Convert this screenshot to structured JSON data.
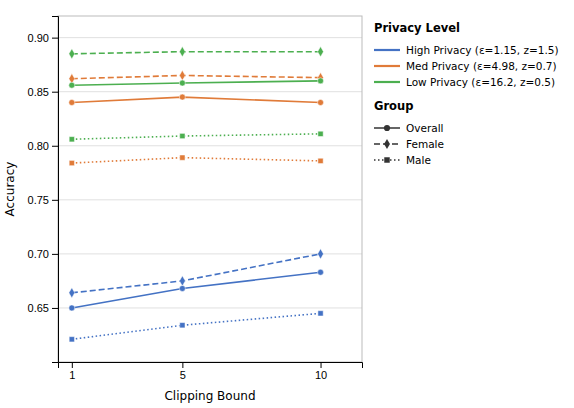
{
  "chart_data": {
    "type": "line",
    "x_label": "Clipping Bound",
    "y_label": "Accuracy",
    "x": [
      1,
      5,
      10
    ],
    "xlim": [
      0.5,
      11.5
    ],
    "xticks": [
      1,
      5,
      10
    ],
    "ylim": [
      0.6,
      0.92
    ],
    "yticks": [
      0.65,
      {
        "value": 0.7,
        "label": "0.70"
      },
      0.75,
      {
        "value": 0.8,
        "label": "0.80"
      },
      0.85,
      {
        "value": 0.9,
        "label": "0.90"
      }
    ],
    "grid": true,
    "legend": "right",
    "series": [
      {
        "color": "#4472C4",
        "line_style": "solid",
        "marker": "circle",
        "values": [
          0.65,
          0.668,
          0.683
        ]
      },
      {
        "color": "#4472C4",
        "line_style": "dashed",
        "marker": "diamond",
        "values": [
          0.664,
          0.675,
          0.7
        ]
      },
      {
        "color": "#4472C4",
        "line_style": "dotted",
        "marker": "square",
        "values": [
          0.621,
          0.634,
          0.645
        ]
      },
      {
        "color": "#E07B39",
        "line_style": "solid",
        "marker": "circle",
        "values": [
          0.84,
          0.845,
          0.84
        ]
      },
      {
        "color": "#E07B39",
        "line_style": "dashed",
        "marker": "diamond",
        "values": [
          0.862,
          0.865,
          0.863
        ]
      },
      {
        "color": "#E07B39",
        "line_style": "dotted",
        "marker": "square",
        "values": [
          0.784,
          0.789,
          0.786
        ]
      },
      {
        "color": "#4CAF50",
        "line_style": "solid",
        "marker": "circle",
        "values": [
          0.856,
          0.858,
          0.86
        ]
      },
      {
        "color": "#4CAF50",
        "line_style": "dashed",
        "marker": "diamond",
        "values": [
          0.885,
          0.887,
          0.887
        ]
      },
      {
        "color": "#4CAF50",
        "line_style": "dotted",
        "marker": "square",
        "values": [
          0.806,
          0.809,
          0.811
        ]
      }
    ],
    "legend_sections": [
      {
        "title": "Privacy Level",
        "entries": [
          {
            "label": "High Privacy (ε=1.15, z=1.5)",
            "color": "#4472C4"
          },
          {
            "label": "Med Privacy (ε=4.98, z=0.7)",
            "color": "#E07B39"
          },
          {
            "label": "Low Privacy (ε=16.2, z=0.5)",
            "color": "#4CAF50"
          }
        ]
      },
      {
        "title": "Group",
        "entries": [
          {
            "label": "Overall",
            "line_style": "solid",
            "marker": "circle"
          },
          {
            "label": "Female",
            "line_style": "dashed",
            "marker": "diamond"
          },
          {
            "label": "Male",
            "line_style": "dotted",
            "marker": "square"
          }
        ]
      }
    ]
  }
}
